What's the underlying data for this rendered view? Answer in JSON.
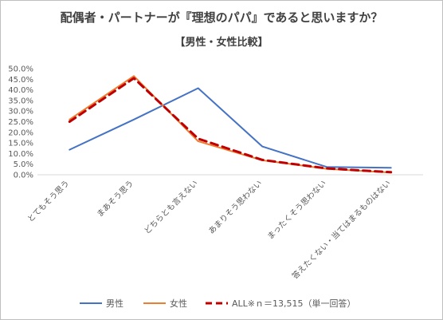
{
  "chart_data": {
    "type": "line",
    "title": "配偶者・パートナーが『理想のパパ』であると思いますか？",
    "subtitle": "【男性・女性比較】",
    "categories": [
      "とてもそう思う",
      "まあそう思う",
      "どちらとも言えない",
      "あまりそう思わない",
      "まったくそう思わない",
      "答えたくない・当てはまるものはない"
    ],
    "y_ticks": [
      "0.0%",
      "5.0%",
      "10.0%",
      "15.0%",
      "20.0%",
      "25.0%",
      "30.0%",
      "35.0%",
      "40.0%",
      "45.0%",
      "50.0%"
    ],
    "ylim": [
      0,
      50
    ],
    "grid": false,
    "legend_position": "bottom",
    "series": [
      {
        "name": "男性",
        "color": "#4472c4",
        "style": "solid",
        "values": [
          11.8,
          26.0,
          40.8,
          13.3,
          3.7,
          3.3
        ]
      },
      {
        "name": "女性",
        "color": "#ed7d31",
        "style": "solid",
        "values": [
          26.0,
          46.5,
          15.8,
          6.8,
          2.8,
          1.0
        ]
      },
      {
        "name": "ALL※ｎ＝13,515（単一回答）",
        "color": "#c00000",
        "style": "dashed",
        "values": [
          25.0,
          45.5,
          17.0,
          7.0,
          3.0,
          1.2
        ]
      }
    ]
  }
}
